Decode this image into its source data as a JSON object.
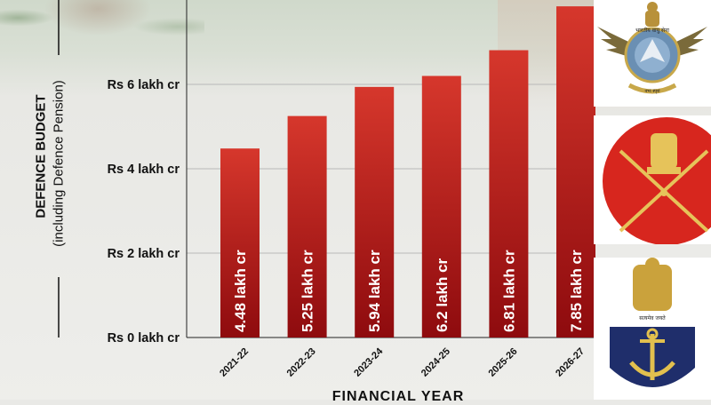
{
  "chart_data": {
    "type": "bar",
    "categories": [
      "2021-22",
      "2022-23",
      "2023-24",
      "2024-25",
      "2025-26",
      "2026-27"
    ],
    "values": [
      4.48,
      5.25,
      5.94,
      6.2,
      6.81,
      7.85
    ],
    "value_labels": [
      "4.48 lakh cr",
      "5.25 lakh cr",
      "5.94 lakh cr",
      "6.2 lakh cr",
      "6.81 lakh cr",
      "7.85 lakh cr"
    ],
    "yticks": [
      0,
      2,
      4,
      6
    ],
    "ytick_labels": [
      "Rs 0 lakh cr",
      "Rs 2 lakh cr",
      "Rs 4 lakh cr",
      "Rs 6 lakh cr"
    ],
    "ylabel": "DEFENCE BUDGET",
    "ylabel_sub": "(including Defence Pension)",
    "xlabel": "FINANCIAL YEAR",
    "ylim": [
      0,
      8
    ],
    "grid": true,
    "colors": {
      "bar_top": "#d6372c",
      "bar_bottom": "#8e0b0e",
      "grid": "#b8b8b8",
      "text": "#111111"
    }
  },
  "emblems": {
    "air_force": "indian-air-force-emblem",
    "army": "indian-army-emblem",
    "navy": "indian-navy-emblem"
  },
  "emblem_text": {
    "air_force_band": "भारतीय वायु सेना",
    "air_force_motto": "नभः स्पृशं",
    "navy_motto": "सत्यमेव जयते"
  }
}
